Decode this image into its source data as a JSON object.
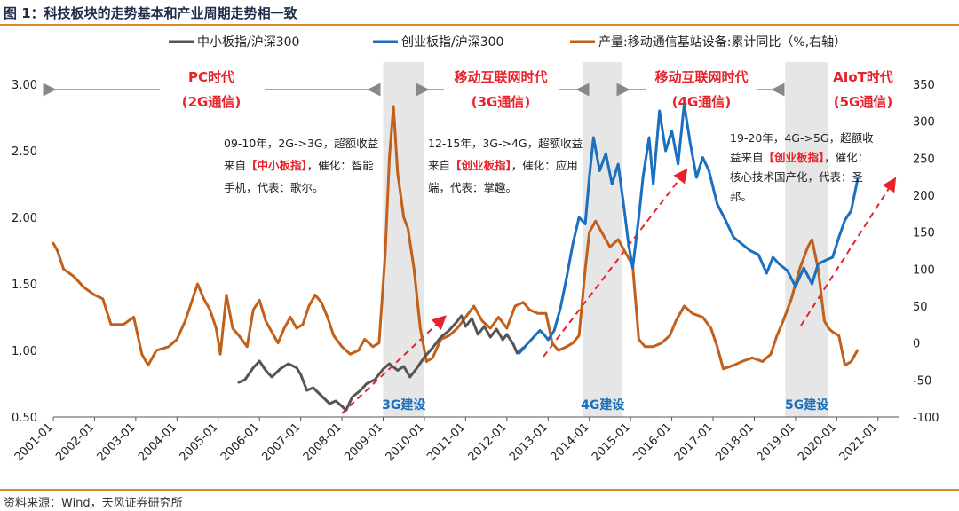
{
  "title": "图 1：科技板块的走势基本和产业周期走势相一致",
  "source": "资料来源：Wind，天风证券研究所",
  "colors": {
    "sme": "#555555",
    "chinext": "#1a6fbf",
    "production": "#c0601a",
    "band": "#e6e6e6",
    "red": "#e8222a",
    "border": "#d98a2b"
  },
  "chart_data": {
    "type": "line",
    "x_tick_labels": [
      "2001-01",
      "2002-01",
      "2003-01",
      "2004-01",
      "2005-01",
      "2006-01",
      "2007-01",
      "2008-01",
      "2009-01",
      "2010-01",
      "2011-01",
      "2012-01",
      "2013-01",
      "2014-01",
      "2015-01",
      "2016-01",
      "2017-01",
      "2018-01",
      "2019-01",
      "2020-01",
      "2021-01"
    ],
    "xlim": [
      2001.0,
      2021.5
    ],
    "y_left": {
      "lim": [
        0.5,
        3.0
      ],
      "ticks": [
        "0.50",
        "1.00",
        "1.50",
        "2.00",
        "2.50",
        "3.00"
      ]
    },
    "y_right": {
      "lim": [
        -100,
        350
      ],
      "ticks": [
        "-100",
        "-50",
        "0",
        "50",
        "100",
        "150",
        "200",
        "250",
        "300",
        "350"
      ]
    },
    "series": [
      {
        "name": "中小板指/沪深300",
        "axis": "left",
        "points": [
          [
            2005.5,
            0.76
          ],
          [
            2005.65,
            0.78
          ],
          [
            2005.85,
            0.87
          ],
          [
            2006.0,
            0.92
          ],
          [
            2006.15,
            0.85
          ],
          [
            2006.3,
            0.8
          ],
          [
            2006.5,
            0.86
          ],
          [
            2006.7,
            0.9
          ],
          [
            2006.9,
            0.87
          ],
          [
            2007.0,
            0.82
          ],
          [
            2007.15,
            0.7
          ],
          [
            2007.3,
            0.72
          ],
          [
            2007.5,
            0.66
          ],
          [
            2007.7,
            0.6
          ],
          [
            2007.85,
            0.62
          ],
          [
            2008.0,
            0.58
          ],
          [
            2008.1,
            0.55
          ],
          [
            2008.25,
            0.65
          ],
          [
            2008.45,
            0.7
          ],
          [
            2008.6,
            0.75
          ],
          [
            2008.8,
            0.78
          ],
          [
            2009.0,
            0.86
          ],
          [
            2009.15,
            0.9
          ],
          [
            2009.35,
            0.85
          ],
          [
            2009.5,
            0.88
          ],
          [
            2009.65,
            0.8
          ],
          [
            2009.8,
            0.86
          ],
          [
            2010.0,
            0.95
          ],
          [
            2010.2,
            1.02
          ],
          [
            2010.4,
            1.1
          ],
          [
            2010.6,
            1.15
          ],
          [
            2010.8,
            1.22
          ],
          [
            2010.9,
            1.26
          ],
          [
            2011.0,
            1.18
          ],
          [
            2011.15,
            1.24
          ],
          [
            2011.3,
            1.12
          ],
          [
            2011.45,
            1.18
          ],
          [
            2011.6,
            1.1
          ],
          [
            2011.75,
            1.16
          ],
          [
            2011.9,
            1.08
          ],
          [
            2012.0,
            1.12
          ],
          [
            2012.15,
            1.05
          ],
          [
            2012.25,
            0.98
          ],
          [
            2012.4,
            1.02
          ]
        ]
      },
      {
        "name": "创业板指/沪深300",
        "axis": "left",
        "points": [
          [
            2012.3,
            0.98
          ],
          [
            2012.5,
            1.05
          ],
          [
            2012.65,
            1.1
          ],
          [
            2012.8,
            1.15
          ],
          [
            2012.9,
            1.12
          ],
          [
            2013.0,
            1.08
          ],
          [
            2013.15,
            1.15
          ],
          [
            2013.3,
            1.32
          ],
          [
            2013.45,
            1.55
          ],
          [
            2013.6,
            1.8
          ],
          [
            2013.75,
            2.0
          ],
          [
            2013.9,
            1.95
          ],
          [
            2014.0,
            2.3
          ],
          [
            2014.1,
            2.6
          ],
          [
            2014.25,
            2.35
          ],
          [
            2014.4,
            2.48
          ],
          [
            2014.55,
            2.25
          ],
          [
            2014.7,
            2.4
          ],
          [
            2014.85,
            2.05
          ],
          [
            2014.95,
            1.8
          ],
          [
            2015.05,
            1.62
          ],
          [
            2015.2,
            2.0
          ],
          [
            2015.3,
            2.3
          ],
          [
            2015.45,
            2.6
          ],
          [
            2015.55,
            2.25
          ],
          [
            2015.7,
            2.8
          ],
          [
            2015.85,
            2.5
          ],
          [
            2016.0,
            2.65
          ],
          [
            2016.15,
            2.4
          ],
          [
            2016.3,
            2.85
          ],
          [
            2016.45,
            2.55
          ],
          [
            2016.6,
            2.3
          ],
          [
            2016.75,
            2.45
          ],
          [
            2016.9,
            2.35
          ],
          [
            2017.1,
            2.1
          ],
          [
            2017.3,
            1.98
          ],
          [
            2017.5,
            1.85
          ],
          [
            2017.7,
            1.8
          ],
          [
            2017.9,
            1.75
          ],
          [
            2018.1,
            1.72
          ],
          [
            2018.3,
            1.58
          ],
          [
            2018.45,
            1.7
          ],
          [
            2018.6,
            1.65
          ],
          [
            2018.8,
            1.6
          ],
          [
            2019.0,
            1.48
          ],
          [
            2019.2,
            1.62
          ],
          [
            2019.4,
            1.5
          ],
          [
            2019.55,
            1.65
          ],
          [
            2019.75,
            1.68
          ],
          [
            2019.9,
            1.7
          ],
          [
            2020.05,
            1.85
          ],
          [
            2020.2,
            1.98
          ],
          [
            2020.35,
            2.05
          ],
          [
            2020.5,
            2.28
          ]
        ]
      },
      {
        "name": "产量:移动通信基站设备:累计同比（%,右轴）",
        "axis": "right",
        "points": [
          [
            2001.0,
            135
          ],
          [
            2001.1,
            125
          ],
          [
            2001.25,
            100
          ],
          [
            2001.5,
            90
          ],
          [
            2001.75,
            75
          ],
          [
            2002.0,
            65
          ],
          [
            2002.2,
            60
          ],
          [
            2002.4,
            25
          ],
          [
            2002.7,
            25
          ],
          [
            2002.95,
            35
          ],
          [
            2003.15,
            -15
          ],
          [
            2003.3,
            -30
          ],
          [
            2003.5,
            -10
          ],
          [
            2003.8,
            -5
          ],
          [
            2004.0,
            5
          ],
          [
            2004.2,
            30
          ],
          [
            2004.35,
            55
          ],
          [
            2004.5,
            80
          ],
          [
            2004.65,
            60
          ],
          [
            2004.8,
            45
          ],
          [
            2004.95,
            20
          ],
          [
            2005.05,
            -15
          ],
          [
            2005.2,
            65
          ],
          [
            2005.35,
            20
          ],
          [
            2005.5,
            10
          ],
          [
            2005.7,
            -5
          ],
          [
            2005.85,
            45
          ],
          [
            2006.0,
            58
          ],
          [
            2006.15,
            30
          ],
          [
            2006.3,
            15
          ],
          [
            2006.45,
            0
          ],
          [
            2006.6,
            20
          ],
          [
            2006.75,
            35
          ],
          [
            2006.9,
            20
          ],
          [
            2007.05,
            25
          ],
          [
            2007.2,
            50
          ],
          [
            2007.35,
            65
          ],
          [
            2007.5,
            55
          ],
          [
            2007.65,
            35
          ],
          [
            2007.8,
            10
          ],
          [
            2008.0,
            -5
          ],
          [
            2008.2,
            -15
          ],
          [
            2008.4,
            -10
          ],
          [
            2008.55,
            5
          ],
          [
            2008.75,
            -5
          ],
          [
            2008.9,
            0
          ],
          [
            2009.05,
            120
          ],
          [
            2009.15,
            250
          ],
          [
            2009.25,
            320
          ],
          [
            2009.35,
            230
          ],
          [
            2009.5,
            170
          ],
          [
            2009.6,
            155
          ],
          [
            2009.75,
            100
          ],
          [
            2009.9,
            20
          ],
          [
            2010.05,
            -25
          ],
          [
            2010.2,
            -20
          ],
          [
            2010.4,
            5
          ],
          [
            2010.6,
            10
          ],
          [
            2010.8,
            20
          ],
          [
            2011.0,
            35
          ],
          [
            2011.2,
            50
          ],
          [
            2011.4,
            30
          ],
          [
            2011.6,
            20
          ],
          [
            2011.8,
            35
          ],
          [
            2012.0,
            20
          ],
          [
            2012.2,
            50
          ],
          [
            2012.4,
            55
          ],
          [
            2012.55,
            45
          ],
          [
            2012.75,
            40
          ],
          [
            2012.95,
            40
          ],
          [
            2013.1,
            0
          ],
          [
            2013.25,
            -10
          ],
          [
            2013.45,
            -5
          ],
          [
            2013.6,
            0
          ],
          [
            2013.75,
            10
          ],
          [
            2013.9,
            100
          ],
          [
            2014.0,
            150
          ],
          [
            2014.15,
            165
          ],
          [
            2014.3,
            150
          ],
          [
            2014.5,
            130
          ],
          [
            2014.7,
            140
          ],
          [
            2014.9,
            120
          ],
          [
            2015.05,
            105
          ],
          [
            2015.2,
            5
          ],
          [
            2015.35,
            -5
          ],
          [
            2015.55,
            -5
          ],
          [
            2015.75,
            0
          ],
          [
            2015.95,
            10
          ],
          [
            2016.1,
            30
          ],
          [
            2016.3,
            50
          ],
          [
            2016.5,
            40
          ],
          [
            2016.75,
            35
          ],
          [
            2016.95,
            20
          ],
          [
            2017.1,
            -5
          ],
          [
            2017.25,
            -35
          ],
          [
            2017.5,
            -30
          ],
          [
            2017.7,
            -25
          ],
          [
            2017.95,
            -20
          ],
          [
            2018.2,
            -25
          ],
          [
            2018.4,
            -15
          ],
          [
            2018.55,
            10
          ],
          [
            2018.7,
            30
          ],
          [
            2018.9,
            60
          ],
          [
            2019.1,
            100
          ],
          [
            2019.3,
            130
          ],
          [
            2019.4,
            140
          ],
          [
            2019.55,
            100
          ],
          [
            2019.7,
            30
          ],
          [
            2019.8,
            20
          ],
          [
            2019.9,
            15
          ],
          [
            2020.05,
            10
          ],
          [
            2020.2,
            -30
          ],
          [
            2020.35,
            -25
          ],
          [
            2020.5,
            -10
          ]
        ]
      }
    ],
    "shaded_bands": [
      {
        "from": 2009.0,
        "to": 2010.0,
        "label": "3G建设"
      },
      {
        "from": 2013.85,
        "to": 2014.8,
        "label": "4G建设"
      },
      {
        "from": 2018.75,
        "to": 2019.8,
        "label": "5G建设"
      }
    ],
    "eras": [
      {
        "line1": "PC时代",
        "line2": "(2G通信)"
      },
      {
        "line1": "移动互联网时代",
        "line2": "(3G通信)"
      },
      {
        "line1": "移动互联网时代",
        "line2": "(4G通信)"
      },
      {
        "line1": "AIoT时代",
        "line2": "(5G通信)"
      }
    ],
    "annotations": [
      {
        "lines": [
          [
            "09-10年，2G->3G，超额收益"
          ],
          [
            "来自",
            "【中小板指】",
            "，催化：智能"
          ],
          [
            "手机，代表：歌尔。"
          ]
        ]
      },
      {
        "lines": [
          [
            "12-15年，3G->4G，超额收益"
          ],
          [
            "来自",
            "【创业板指】",
            "，催化：应用"
          ],
          [
            "端，代表：掌趣。"
          ]
        ]
      },
      {
        "lines": [
          [
            "19-20年，4G->5G，超额收"
          ],
          [
            "益来自",
            "【创业板指】",
            "，催化："
          ],
          [
            "核心技术国产化，代表：圣"
          ],
          [
            "邦。"
          ]
        ]
      }
    ]
  }
}
